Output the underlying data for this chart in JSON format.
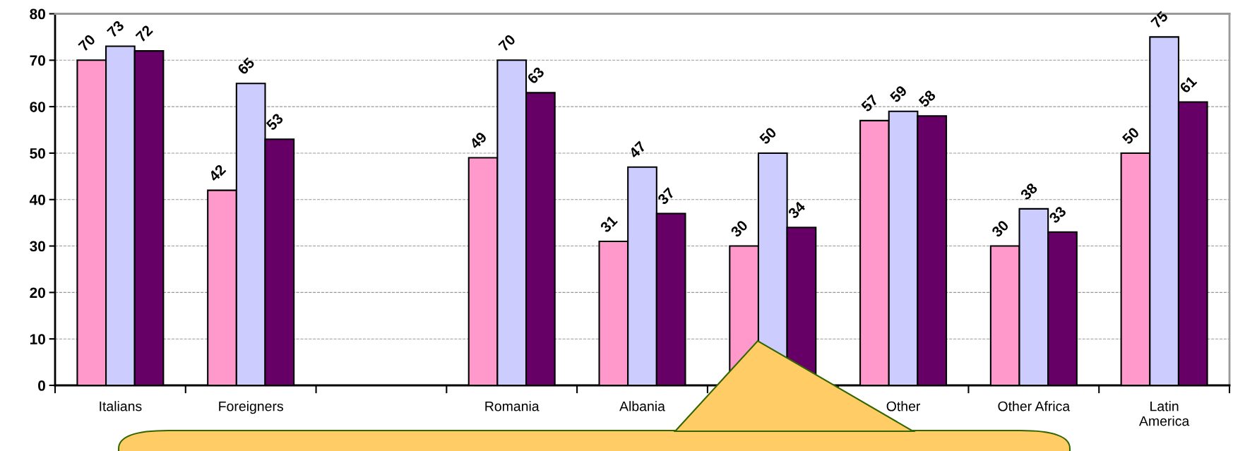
{
  "chart_data": {
    "type": "bar",
    "categories": [
      "Italians",
      "Foreigners",
      null,
      "Romania",
      "Albania",
      null,
      "Other",
      "Other Africa",
      "Latin\nAmerica"
    ],
    "series": [
      {
        "color": "#ff99cc",
        "values": [
          70,
          42,
          null,
          49,
          31,
          30,
          57,
          30,
          50
        ]
      },
      {
        "color": "#ccccff",
        "values": [
          73,
          65,
          null,
          70,
          47,
          50,
          59,
          38,
          75
        ]
      },
      {
        "color": "#660066",
        "values": [
          72,
          53,
          null,
          63,
          37,
          34,
          58,
          33,
          61
        ]
      }
    ],
    "ylim": [
      0,
      80
    ],
    "yticks": [
      0,
      10,
      20,
      30,
      40,
      50,
      60,
      70,
      80
    ],
    "grid": "y",
    "legend": false,
    "data_labels": true
  }
}
